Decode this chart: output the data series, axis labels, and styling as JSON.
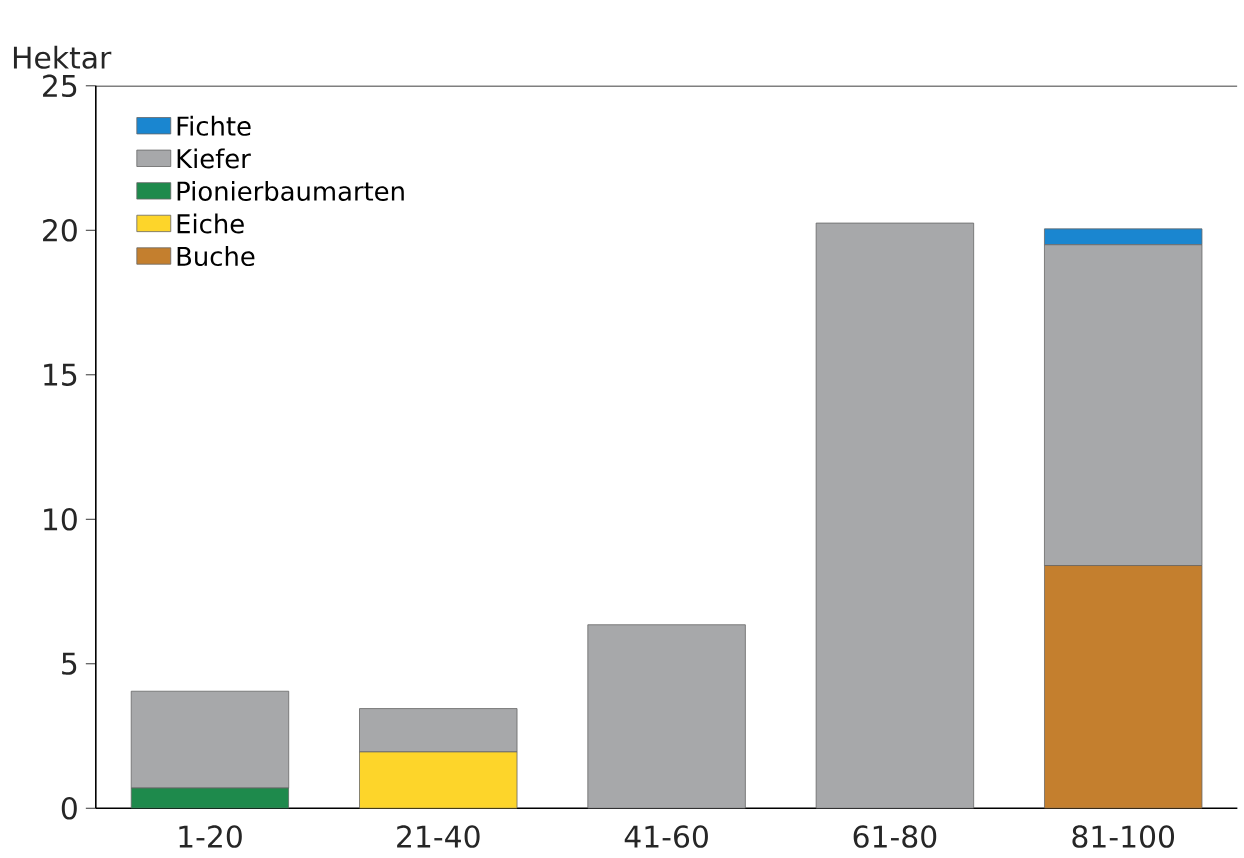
{
  "chart_data": {
    "type": "bar",
    "stacked": true,
    "ylabel": "Hektar",
    "categories": [
      "1-20",
      "21-40",
      "41-60",
      "61-80",
      "81-100"
    ],
    "series": [
      {
        "name": "Buche",
        "color": "#c47f2e",
        "values": [
          null,
          null,
          null,
          null,
          8.4
        ]
      },
      {
        "name": "Eiche",
        "color": "#fdd52a",
        "values": [
          null,
          1.95,
          null,
          null,
          null
        ]
      },
      {
        "name": "Pionierbaumarten",
        "color": "#1e8a4c",
        "values": [
          0.7,
          null,
          null,
          null,
          null
        ]
      },
      {
        "name": "Kiefer",
        "color": "#a7a8aa",
        "values": [
          3.35,
          1.5,
          6.35,
          20.25,
          11.1
        ]
      },
      {
        "name": "Fichte",
        "color": "#1a86d0",
        "values": [
          null,
          null,
          null,
          null,
          0.55
        ]
      }
    ],
    "ylim": [
      0,
      25
    ],
    "yticks": [
      0,
      5,
      10,
      15,
      20,
      25
    ],
    "legend": "top left",
    "grid": false
  }
}
